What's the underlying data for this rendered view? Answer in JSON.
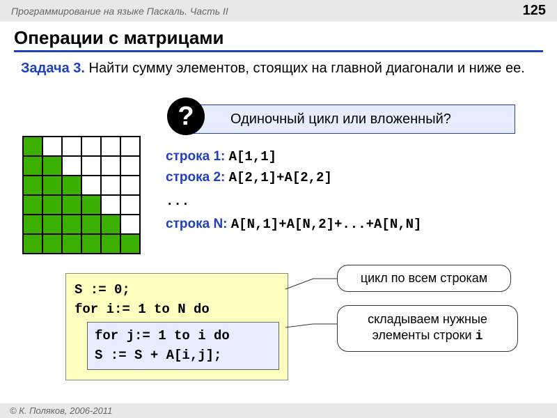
{
  "header": {
    "course": "Программирование на языке Паскаль. Часть II",
    "page": "125"
  },
  "title": "Операции с матрицами",
  "task": {
    "label": "Задача 3.",
    "text": " Найти сумму элементов, стоящих  на главной диагонали и ниже ее."
  },
  "question": {
    "mark": "?",
    "text": "Одиночный цикл или вложенный?"
  },
  "matrix": {
    "size": 6,
    "fill_color": "#3bb000",
    "cells": [
      [
        1,
        0,
        0,
        0,
        0,
        0
      ],
      [
        1,
        1,
        0,
        0,
        0,
        0
      ],
      [
        1,
        1,
        1,
        0,
        0,
        0
      ],
      [
        1,
        1,
        1,
        1,
        0,
        0
      ],
      [
        1,
        1,
        1,
        1,
        1,
        0
      ],
      [
        1,
        1,
        1,
        1,
        1,
        1
      ]
    ]
  },
  "rows": {
    "r1": {
      "label": "строка 1:",
      "expr": "A[1,1]"
    },
    "r2": {
      "label": "строка 2:",
      "expr": "A[2,1]+A[2,2]"
    },
    "dots": "...",
    "rN": {
      "label": "строка N:",
      "expr": "A[N,1]+A[N,2]+...+A[N,N]"
    }
  },
  "code": {
    "l1": "S := 0;",
    "l2": "for i:= 1 to N do",
    "l3": "for j:= 1 to i do",
    "l4": "  S := S + A[i,j];"
  },
  "bubbles": {
    "b1": "цикл по всем строкам",
    "b2": "складываем нужные элементы строки i"
  },
  "footer": "© К. Поляков, 2006-2011"
}
